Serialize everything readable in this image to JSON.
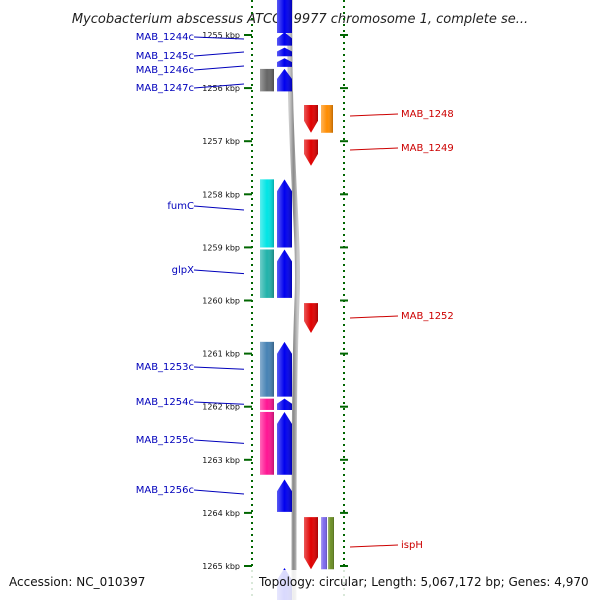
{
  "header": {
    "title": "Mycobacterium abscessus ATCC 19977 chromosome 1, complete se..."
  },
  "footer": {
    "accession": "Accession: NC_010397",
    "summary": "Topology: circular; Length: 5,067,172 bp; Genes: 4,970"
  },
  "colors": {
    "forward_strand": "#0000ee",
    "reverse_strand": "#e00000",
    "left_label": "#0000bb",
    "right_label": "#cc0000",
    "scale_tick": "#006600",
    "backbone": "#888888"
  },
  "scale": {
    "unit": "kbp",
    "ticks": [
      {
        "value": 1255,
        "label": "1255 kbp"
      },
      {
        "value": 1256,
        "label": "1256 kbp"
      },
      {
        "value": 1257,
        "label": "1257 kbp"
      },
      {
        "value": 1258,
        "label": "1258 kbp"
      },
      {
        "value": 1259,
        "label": "1259 kbp"
      },
      {
        "value": 1260,
        "label": "1260 kbp"
      },
      {
        "value": 1261,
        "label": "1261 kbp"
      },
      {
        "value": 1262,
        "label": "1262 kbp"
      },
      {
        "value": 1263,
        "label": "1263 kbp"
      },
      {
        "value": 1264,
        "label": "1264 kbp"
      },
      {
        "value": 1265,
        "label": "1265 kbp"
      }
    ]
  },
  "genes": [
    {
      "name": "MAB_1244c",
      "strand": "-",
      "start": 1254.93,
      "end": 1255.22,
      "color": "#0000ee",
      "cog_color": null
    },
    {
      "name": "MAB_1245c",
      "strand": "-",
      "start": 1255.22,
      "end": 1255.42,
      "color": "#0000ee",
      "cog_color": null
    },
    {
      "name": "MAB_1246c",
      "strand": "-",
      "start": 1255.42,
      "end": 1255.62,
      "color": "#0000ee",
      "cog_color": null
    },
    {
      "name": "MAB_1247c",
      "strand": "-",
      "start": 1255.62,
      "end": 1256.08,
      "color": "#0000ee",
      "cog_color": "#666666"
    },
    {
      "name": "MAB_1248",
      "strand": "+",
      "start": 1256.3,
      "end": 1256.86,
      "color": "#e00000",
      "cog_color": "#ff8c00"
    },
    {
      "name": "MAB_1249",
      "strand": "+",
      "start": 1256.95,
      "end": 1257.48,
      "color": "#e00000",
      "cog_color": null
    },
    {
      "name": "fumC",
      "strand": "-",
      "start": 1257.7,
      "end": 1259.02,
      "color": "#0000ee",
      "cog_color": "#00e5e5"
    },
    {
      "name": "glpX",
      "strand": "-",
      "start": 1259.02,
      "end": 1259.97,
      "color": "#0000ee",
      "cog_color": "#20b2aa"
    },
    {
      "name": "MAB_1252",
      "strand": "+",
      "start": 1260.03,
      "end": 1260.63,
      "color": "#e00000",
      "cog_color": null
    },
    {
      "name": "MAB_1253c",
      "strand": "-",
      "start": 1260.76,
      "end": 1261.83,
      "color": "#0000ee",
      "cog_color": "#4682b4"
    },
    {
      "name": "MAB_1254c",
      "strand": "-",
      "start": 1261.83,
      "end": 1262.08,
      "color": "#0000ee",
      "cog_color": "#ff1493"
    },
    {
      "name": "MAB_1255c",
      "strand": "-",
      "start": 1262.08,
      "end": 1263.3,
      "color": "#0000ee",
      "cog_color": "#ff1493"
    },
    {
      "name": "MAB_1256c",
      "strand": "-",
      "start": 1263.35,
      "end": 1264.0,
      "color": "#0000ee",
      "cog_color": null
    },
    {
      "name": "ispH",
      "strand": "+",
      "start": 1264.06,
      "end": 1265.08,
      "color": "#e00000",
      "cog_color": "#7b68ee",
      "cog_color2": "#6b8e23"
    }
  ]
}
